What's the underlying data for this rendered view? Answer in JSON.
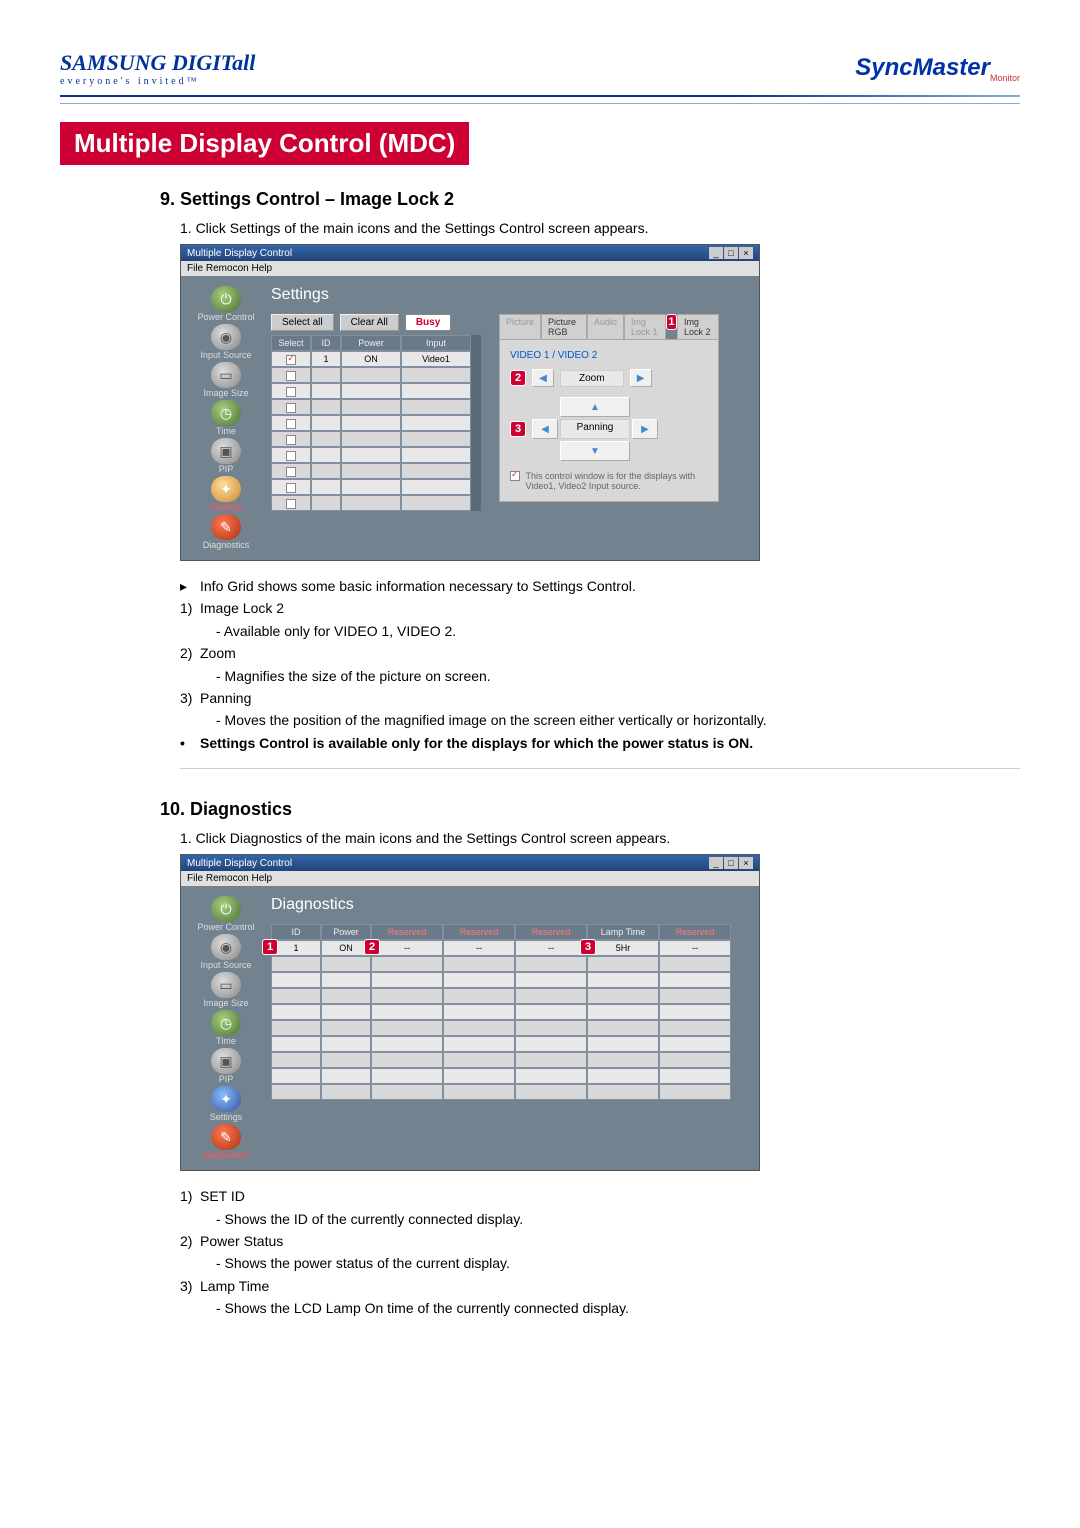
{
  "header": {
    "logo_left_brand": "SAMSUNG DIGITall",
    "logo_left_tag": "everyone's invited™",
    "logo_right": "SyncMaster",
    "logo_right_sub": "Monitor"
  },
  "page_title": "Multiple Display Control (MDC)",
  "section1": {
    "title": "9. Settings Control – Image Lock 2",
    "instruction": "1.  Click Settings of the main icons and the Settings Control screen appears.",
    "bullets": [
      {
        "m": "▸",
        "t": "Info Grid shows some basic information necessary to Settings Control."
      },
      {
        "m": "1)",
        "t": "Image Lock 2"
      },
      {
        "m": "",
        "t": "- Available only for VIDEO 1, VIDEO 2.",
        "sub": true
      },
      {
        "m": "2)",
        "t": "Zoom"
      },
      {
        "m": "",
        "t": "- Magnifies the size of the picture on screen.",
        "sub": true
      },
      {
        "m": "3)",
        "t": "Panning"
      },
      {
        "m": "",
        "t": "- Moves the position of the magnified image on the screen either vertically or horizontally.",
        "sub": true
      },
      {
        "m": "•",
        "t": "Settings Control is available only for the displays for which the power status is ON.",
        "bold": true
      }
    ]
  },
  "section2": {
    "title": "10. Diagnostics",
    "instruction": "1.  Click Diagnostics of the main icons and the Settings Control screen appears.",
    "bullets": [
      {
        "m": "1)",
        "t": "SET ID"
      },
      {
        "m": "",
        "t": "- Shows the ID of the currently connected display.",
        "sub": true
      },
      {
        "m": "2)",
        "t": "Power Status"
      },
      {
        "m": "",
        "t": "- Shows the power status of the current display.",
        "sub": true
      },
      {
        "m": "3)",
        "t": "Lamp Time"
      },
      {
        "m": "",
        "t": "- Shows the LCD Lamp On time of the currently connected display.",
        "sub": true
      }
    ]
  },
  "screenshot": {
    "window_title": "Multiple Display Control",
    "menu": "File  Remocon  Help",
    "sidebar": [
      "Power Control",
      "Input Source",
      "Image Size",
      "Time",
      "PIP",
      "Settings",
      "Diagnostics"
    ],
    "panel1": {
      "title": "Settings",
      "buttons": {
        "select_all": "Select all",
        "clear_all": "Clear All",
        "busy": "Busy"
      },
      "cols": [
        "Select",
        "ID",
        "Power",
        "Input"
      ],
      "row1": {
        "id": "1",
        "power": "ON",
        "input": "Video1"
      },
      "tabs": [
        "Picture",
        "Picture RGB",
        "Audio",
        "Img Lock 1",
        "Img Lock 2"
      ],
      "ctrl_label": "VIDEO 1 / VIDEO 2",
      "zoom_label": "Zoom",
      "panning_label": "Panning",
      "note": "This control window is for the displays with Video1, Video2 Input source."
    },
    "panel2": {
      "title": "Diagnostics",
      "cols": [
        "ID",
        "Power",
        "Reserved",
        "Reserved",
        "Reserved",
        "Lamp Time",
        "Reserved"
      ],
      "row1": {
        "id": "1",
        "power": "ON",
        "a": "--",
        "b": "--",
        "c": "--",
        "lamp": "5Hr",
        "d": "--"
      }
    }
  },
  "colors": {
    "accent_red": "#cc0033",
    "accent_blue": "#003399"
  }
}
